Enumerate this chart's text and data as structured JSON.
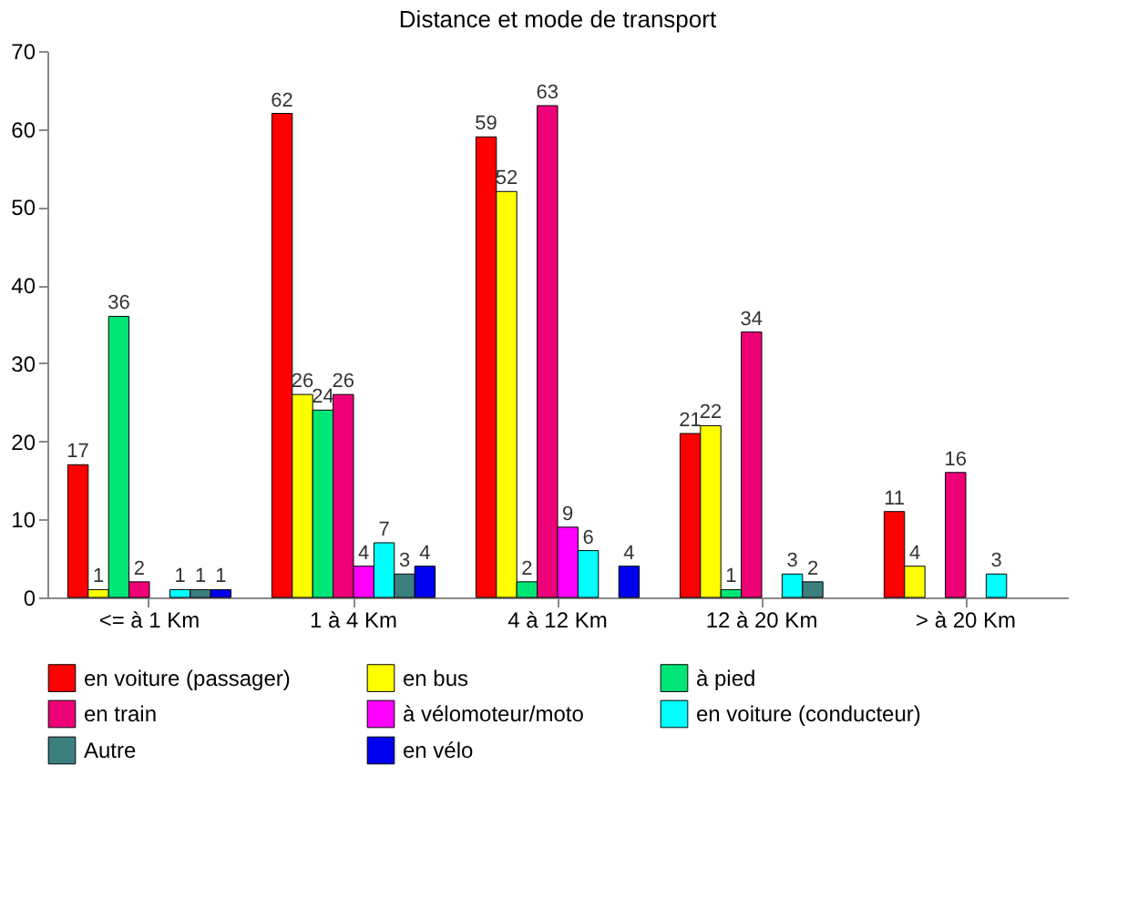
{
  "chart_data": {
    "type": "bar",
    "title": "Distance et mode de transport",
    "categories": [
      "<= à 1 Km",
      "1 à 4 Km",
      "4 à 12 Km",
      "12 à 20 Km",
      "> à 20 Km"
    ],
    "series": [
      {
        "name": "en voiture (passager)",
        "color": "#ff0000",
        "values": [
          17,
          62,
          59,
          21,
          11
        ]
      },
      {
        "name": "en bus",
        "color": "#ffff00",
        "values": [
          1,
          26,
          52,
          22,
          4
        ]
      },
      {
        "name": "à pied",
        "color": "#00e676",
        "values": [
          36,
          24,
          2,
          1,
          null
        ]
      },
      {
        "name": "en train",
        "color": "#ee0077",
        "values": [
          2,
          26,
          63,
          34,
          16
        ]
      },
      {
        "name": "à vélomoteur/moto",
        "color": "#ff00ff",
        "values": [
          null,
          4,
          9,
          null,
          null
        ]
      },
      {
        "name": "en voiture (conducteur)",
        "color": "#00ffff",
        "values": [
          1,
          7,
          6,
          3,
          3
        ]
      },
      {
        "name": "Autre",
        "color": "#3c7f7f",
        "values": [
          1,
          3,
          null,
          2,
          null
        ]
      },
      {
        "name": "en vélo",
        "color": "#0000ee",
        "values": [
          1,
          4,
          4,
          null,
          null
        ]
      }
    ],
    "ylim": [
      0,
      70
    ],
    "yticks": [
      0,
      10,
      20,
      30,
      40,
      50,
      60,
      70
    ],
    "grid": false,
    "legend": "bottom",
    "data_labels": true
  }
}
